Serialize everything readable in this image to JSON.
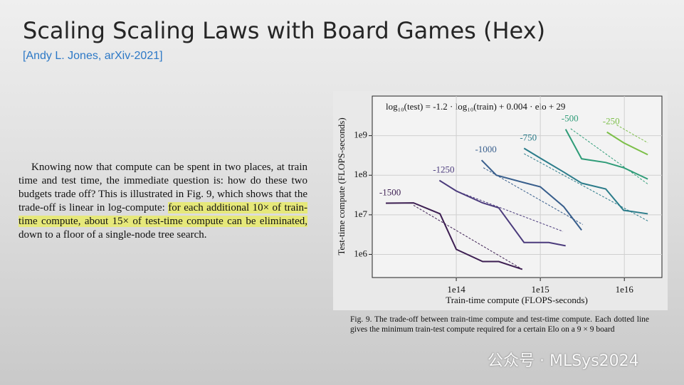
{
  "slide": {
    "title": "Scaling Scaling Laws with Board Games (Hex)",
    "citation": "[Andy L. Jones, arXiv-2021]",
    "paragraph": {
      "before": "Knowing now that compute can be spent in two places, at train time and test time, the immediate question is: how do these two budgets trade off? This is illustrated in Fig. 9, which shows that the trade-off is linear in log-compute: ",
      "highlight": "for each additional 10× of train-time compute, about 15× of test-time compute can be eliminated,",
      "after": " down to a floor of a single-node tree search."
    },
    "caption": "Fig. 9.  The trade-off between train-time compute and test-time compute. Each dotted line gives the minimum train-test compute required for a certain Elo on a 9 × 9 board",
    "watermark": "公众号 · MLSys2024"
  },
  "chart_data": {
    "type": "line",
    "title": "log₁₀(test) = -1.2 · log₁₀(train) + 0.004 · elo + 29",
    "x_label": "Train-time compute (FLOPS-seconds)",
    "y_label": "Test-time compute (FLOPS-seconds)",
    "log_x": true,
    "log_y": true,
    "grid": true,
    "xlim": [
      10000000000000.0,
      2.8e+16
    ],
    "ylim": [
      260000,
      10000000000.0
    ],
    "xticks": [
      {
        "value": 100000000000000.0,
        "label": "1e14"
      },
      {
        "value": 1000000000000000.0,
        "label": "1e15"
      },
      {
        "value": 1e+16,
        "label": "1e16"
      }
    ],
    "yticks": [
      {
        "value": 1000000.0,
        "label": "1e6"
      },
      {
        "value": 10000000.0,
        "label": "1e7"
      },
      {
        "value": 100000000.0,
        "label": "1e8"
      },
      {
        "value": 1000000000.0,
        "label": "1e9"
      }
    ],
    "series": [
      {
        "name": "-1500",
        "color": "#3d1f52",
        "x": [
          14500000000000.0,
          31000000000000.0,
          64000000000000.0,
          100000000000000.0,
          206000000000000.0,
          320000000000000.0,
          610000000000000.0
        ],
        "values": [
          19700000.0,
          20000000.0,
          10600000.0,
          1340000.0,
          660000.0,
          660000.0,
          420000.0
        ],
        "fit": {
          "x": [
            31000000000000.0,
            610000000000000.0
          ],
          "values": [
            17400000.0,
            420000.0
          ]
        }
      },
      {
        "name": "-1250",
        "color": "#4b3b7c",
        "x": [
          63000000000000.0,
          100000000000000.0,
          206000000000000.0,
          320000000000000.0,
          640000000000000.0,
          1260000000000000.0,
          2000000000000000.0
        ],
        "values": [
          74000000.0,
          40000000.0,
          20000000.0,
          15000000.0,
          2000000.0,
          2000000.0,
          1650000.0
        ],
        "fit": {
          "x": [
            100000000000000.0,
            1860000000000000.0
          ],
          "values": [
            40000000.0,
            3800000.0
          ]
        }
      },
      {
        "name": "-1000",
        "color": "#385e8c",
        "x": [
          200000000000000.0,
          300000000000000.0,
          640000000000000.0,
          1000000000000000.0,
          1900000000000000.0,
          3100000000000000.0
        ],
        "values": [
          240000000.0,
          100000000.0,
          65000000.0,
          51000000.0,
          16000000.0,
          4100000.0
        ],
        "fit": {
          "x": [
            210000000000000.0,
            3200000000000000.0
          ],
          "values": [
            155000000.0,
            5700000.0
          ]
        }
      },
      {
        "name": "-750",
        "color": "#2b7c8a",
        "x": [
          640000000000000.0,
          1000000000000000.0,
          1900000000000000.0,
          3100000000000000.0,
          6000000000000000.0,
          9800000000000000.0,
          1.9e+16
        ],
        "values": [
          480000000.0,
          270000000.0,
          120000000.0,
          63000000.0,
          45000000.0,
          13000000.0,
          10600000.0
        ],
        "fit": {
          "x": [
            640000000000000.0,
            1.9e+16
          ],
          "values": [
            350000000.0,
            7000000.0
          ]
        }
      },
      {
        "name": "-500",
        "color": "#2f9c78",
        "x": [
          2000000000000000.0,
          3100000000000000.0,
          6000000000000000.0,
          9800000000000000.0,
          1.9e+16
        ],
        "values": [
          1450000000.0,
          260000000.0,
          210000000.0,
          155000000.0,
          80000000.0
        ],
        "fit": {
          "x": [
            2300000000000000.0,
            1.9e+16
          ],
          "values": [
            1500000000.0,
            60000000.0
          ]
        }
      },
      {
        "name": "-250",
        "color": "#7cbf48",
        "x": [
          6200000000000000.0,
          9800000000000000.0,
          1.9e+16
        ],
        "values": [
          1230000000.0,
          660000000.0,
          330000000.0
        ],
        "fit": {
          "x": [
            8100000000000000.0,
            1.9e+16
          ],
          "values": [
            1860000000.0,
            660000000.0
          ]
        }
      }
    ]
  }
}
